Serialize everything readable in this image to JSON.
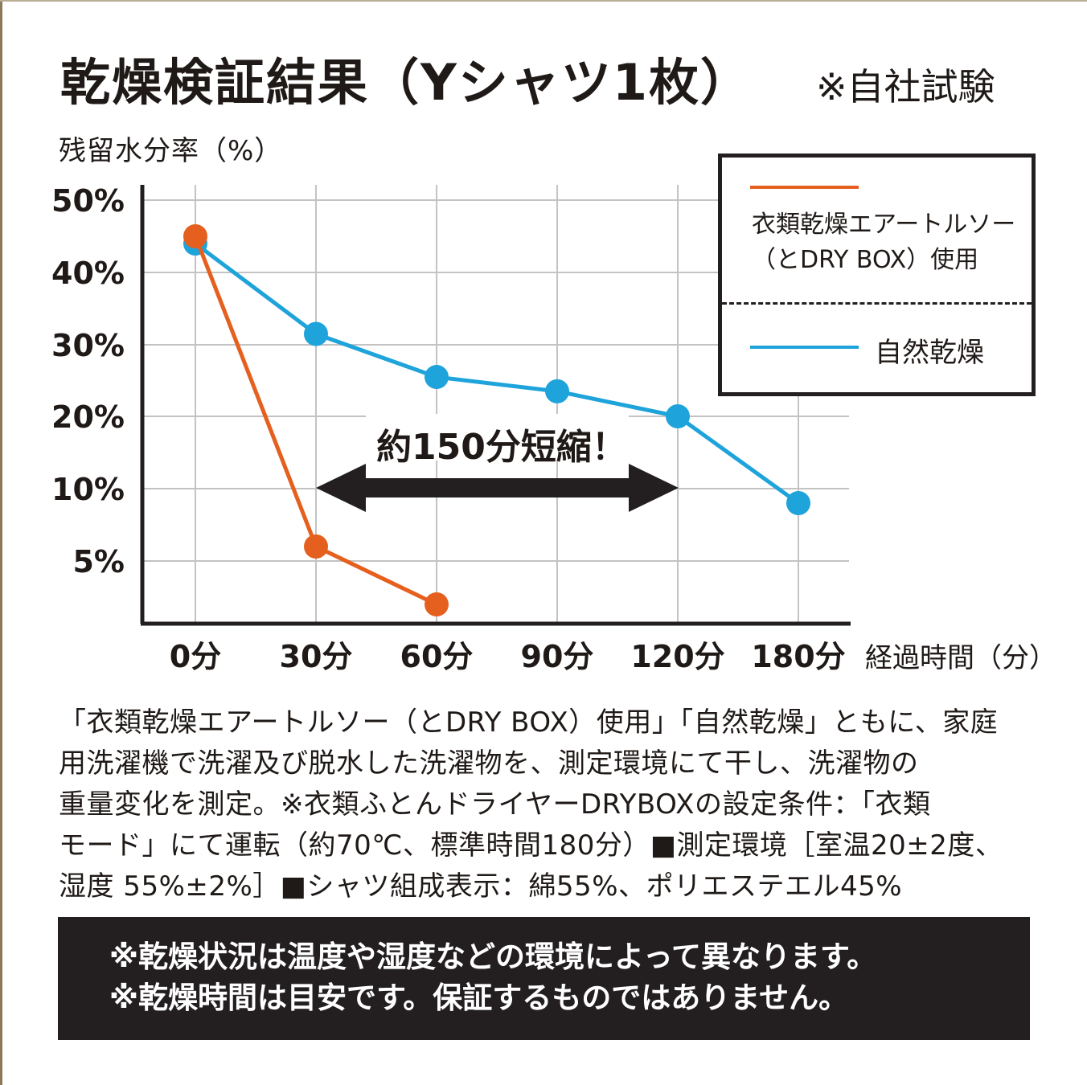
{
  "title": "乾燥検証結果（Yシャツ1枚）",
  "note": "※自社試験",
  "colors": {
    "series_dry_box": "#e5601f",
    "series_natural": "#1ea3db",
    "text": "#1f1a17",
    "grid": "#c3c3c3",
    "footer_bg": "#231f20"
  },
  "chart_data": {
    "type": "line",
    "ylabel": "残留水分率（%）",
    "xlabel": "経過時間（分）",
    "categories": [
      "0分",
      "30分",
      "60分",
      "90分",
      "120分",
      "180分"
    ],
    "y_ticks": [
      "50%",
      "40%",
      "30%",
      "20%",
      "10%",
      "5%"
    ],
    "series": [
      {
        "name": "衣類乾燥エアートルソー（とDRY BOX）使用",
        "values": [
          45,
          6,
          2,
          null,
          null,
          null
        ]
      },
      {
        "name": "自然乾燥",
        "values": [
          44,
          31.5,
          25.5,
          23.5,
          20,
          9
        ]
      }
    ],
    "annotation": "約150分短縮！",
    "annotation_range": [
      "30分",
      "120分"
    ]
  },
  "legend": {
    "item1": "衣類乾燥エアートルソー（とDRY BOX）使用",
    "item2": "自然乾燥"
  },
  "description": [
    "「衣類乾燥エアートルソー（とDRY BOX）使用」「自然乾燥」ともに、家庭",
    "用洗濯機で洗濯及び脱水した洗濯物を、測定環境にて干し、洗濯物の",
    "重量変化を測定。※衣類ふとんドライヤーDRYBOXの設定条件：「衣類",
    "モード」にて運転（約70℃、標準時間180分）■測定環境［室温20±2度、",
    "湿度 55%±2%］■シャツ組成表示：綿55%、ポリエステエル45%"
  ],
  "footer": [
    "※乾燥状況は温度や湿度などの環境によって異なります。",
    "※乾燥時間は目安です。保証するものではありません。"
  ]
}
